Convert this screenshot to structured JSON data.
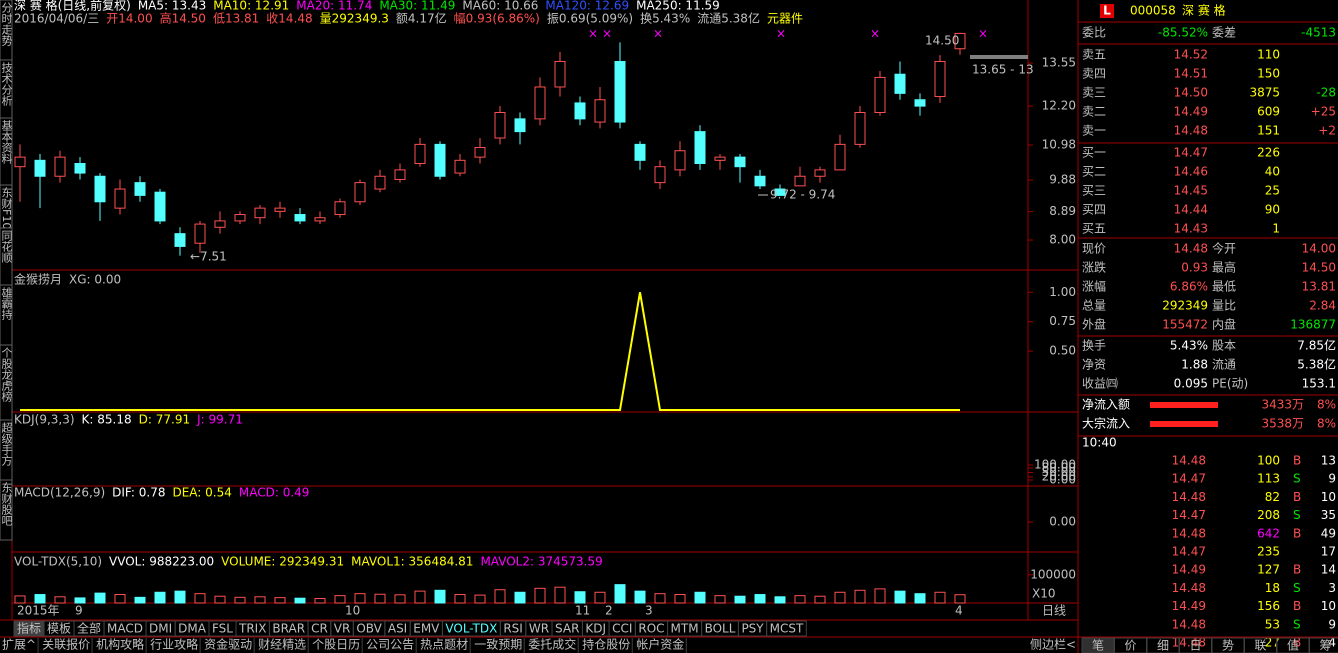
{
  "left_tabs": [
    "分时走势",
    "技术分析",
    "基本资料",
    "东财F10",
    "同花顺",
    "雄霸持",
    "个股龙虎榜",
    "超级手方",
    "东财股吧"
  ],
  "main_chart": {
    "title": "深 赛 格(日线,前复权)",
    "ma": [
      {
        "text": "MA5: 13.43",
        "color": "#ffffff"
      },
      {
        "text": "MA10: 12.91",
        "color": "#ffff00"
      },
      {
        "text": "MA20: 11.74",
        "color": "#ff00ff"
      },
      {
        "text": "MA30: 11.49",
        "color": "#00e600"
      },
      {
        "text": "MA60: 10.66",
        "color": "#c0c0c0"
      },
      {
        "text": "MA120: 12.69",
        "color": "#3050ff"
      },
      {
        "text": "MA250: 11.59",
        "color": "#ffffff"
      }
    ],
    "info": [
      {
        "text": "2016/04/06/三",
        "color": "#c0c0c0"
      },
      {
        "text": "开14.00",
        "color": "#ff5050"
      },
      {
        "text": "高14.50",
        "color": "#ff5050"
      },
      {
        "text": "低13.81",
        "color": "#ff5050"
      },
      {
        "text": "收14.48",
        "color": "#ff5050"
      },
      {
        "text": "量292349.3",
        "color": "#ffff00"
      },
      {
        "text": "额4.17亿",
        "color": "#c0c0c0"
      },
      {
        "text": "幅0.93(6.86%)",
        "color": "#ff5050"
      },
      {
        "text": "振0.69(5.09%)",
        "color": "#c0c0c0"
      },
      {
        "text": "换5.43%",
        "color": "#c0c0c0"
      },
      {
        "text": "流通5.38亿",
        "color": "#c0c0c0"
      },
      {
        "text": "元器件",
        "color": "#ffff00"
      }
    ],
    "ylim": [
      7.06,
      14.65
    ],
    "yticks": [
      13.55,
      {
        "value": 12.2,
        "label": "12.20"
      },
      10.98,
      9.88,
      8.89,
      {
        "value": 8,
        "label": "8.00"
      }
    ],
    "up_color": "#ff5050",
    "down_color": "#54ffff",
    "candles": [
      [
        10.3,
        10.6,
        11.0,
        9.2
      ],
      [
        10.5,
        10.0,
        10.7,
        9.0
      ],
      [
        10.0,
        10.6,
        10.8,
        9.8
      ],
      [
        10.4,
        10.1,
        10.6,
        9.9
      ],
      [
        10.0,
        9.2,
        10.1,
        8.6
      ],
      [
        9.0,
        9.6,
        9.9,
        8.8
      ],
      [
        9.8,
        9.4,
        10.0,
        9.2
      ],
      [
        9.5,
        8.6,
        9.6,
        8.5
      ],
      [
        8.2,
        7.8,
        8.4,
        7.51
      ],
      [
        7.9,
        8.5,
        8.6,
        7.6
      ],
      [
        8.4,
        8.6,
        8.9,
        8.2
      ],
      [
        8.6,
        8.8,
        8.9,
        8.5
      ],
      [
        8.7,
        9.0,
        9.1,
        8.5
      ],
      [
        8.9,
        9.0,
        9.2,
        8.7
      ],
      [
        8.8,
        8.6,
        9.0,
        8.5
      ],
      [
        8.6,
        8.7,
        8.9,
        8.5
      ],
      [
        8.8,
        9.2,
        9.3,
        8.7
      ],
      [
        9.2,
        9.8,
        9.9,
        9.1
      ],
      [
        9.6,
        10.0,
        10.2,
        9.5
      ],
      [
        9.9,
        10.2,
        10.4,
        9.8
      ],
      [
        10.4,
        11.0,
        11.2,
        10.3
      ],
      [
        11.0,
        10.0,
        11.1,
        9.9
      ],
      [
        10.1,
        10.5,
        10.7,
        10.0
      ],
      [
        10.6,
        10.9,
        11.2,
        10.4
      ],
      [
        11.2,
        12.0,
        12.2,
        11.0
      ],
      [
        11.8,
        11.4,
        12.0,
        11.0
      ],
      [
        11.8,
        12.8,
        13.1,
        11.6
      ],
      [
        12.8,
        13.6,
        13.9,
        12.5
      ],
      [
        12.3,
        11.8,
        12.5,
        11.6
      ],
      [
        11.7,
        12.4,
        12.8,
        11.5
      ],
      [
        13.6,
        11.7,
        14.2,
        11.5
      ],
      [
        11.0,
        10.5,
        11.1,
        10.2
      ],
      [
        9.8,
        10.3,
        10.5,
        9.6
      ],
      [
        10.2,
        10.8,
        11.1,
        10.0
      ],
      [
        11.4,
        10.4,
        11.6,
        10.2
      ],
      [
        10.5,
        10.6,
        10.7,
        10.2
      ],
      [
        10.6,
        10.3,
        10.7,
        9.8
      ],
      [
        10.0,
        9.7,
        10.2,
        9.6
      ],
      [
        9.6,
        9.4,
        9.74,
        9.4
      ],
      [
        9.7,
        10.0,
        10.3,
        9.7
      ],
      [
        10.0,
        10.2,
        10.3,
        9.8
      ],
      [
        10.2,
        11.0,
        11.3,
        10.2
      ],
      [
        11.0,
        12.0,
        12.2,
        10.9
      ],
      [
        12.0,
        13.1,
        13.3,
        11.9
      ],
      [
        13.2,
        12.6,
        13.6,
        12.4
      ],
      [
        12.4,
        12.2,
        12.6,
        11.9
      ],
      [
        12.5,
        13.6,
        13.8,
        12.3
      ],
      [
        14.0,
        14.48,
        14.5,
        13.81
      ]
    ],
    "annotations": [
      "←7.51",
      "9.72 - 9.74",
      "14.50",
      "13.65 - 13"
    ],
    "x_labels": [
      "2015年",
      "9",
      "10",
      "11",
      "2",
      "3",
      "4"
    ]
  },
  "signal_panel": {
    "title": "金猴捞月",
    "readout": "XG: 0.00",
    "color": "#ffff00",
    "ylim": [
      0,
      1.13
    ],
    "yticks": [
      {
        "value": 1,
        "label": "1.00"
      },
      0.75,
      {
        "value": 0.5,
        "label": "0.50"
      }
    ],
    "values": [
      0,
      0,
      0,
      0,
      0,
      0,
      0,
      0,
      0,
      0,
      0,
      0,
      0,
      0,
      0,
      0,
      0,
      0,
      0,
      0,
      0,
      0,
      0,
      0,
      0,
      0,
      0,
      0,
      0,
      0,
      0,
      1,
      0,
      0,
      0,
      0,
      0,
      0,
      0,
      0,
      0,
      0,
      0,
      0,
      0,
      0,
      0,
      0
    ]
  },
  "kdj_panel": {
    "title": "KDJ(9,3,3)",
    "readouts": [
      {
        "text": "K: 85.18",
        "color": "#ffffff"
      },
      {
        "text": "D: 77.91",
        "color": "#ffff00"
      },
      {
        "text": "J: 99.71",
        "color": "#ff00ff"
      }
    ],
    "ylim": [
      0,
      100
    ],
    "yticks": [
      {
        "value": 100,
        "label": "100.00"
      },
      {
        "value": 80,
        "label": "80.00"
      },
      {
        "value": 50,
        "label": "50.00"
      },
      {
        "value": 20,
        "label": "20.00"
      },
      {
        "value": 0,
        "label": "0.00"
      }
    ]
  },
  "macd_panel": {
    "title": "MACD(12,26,9)",
    "readouts": [
      {
        "text": "DIF: 0.78",
        "color": "#ffffff"
      },
      {
        "text": "DEA: 0.54",
        "color": "#ffff00"
      },
      {
        "text": "MACD: 0.49",
        "color": "#ff00ff"
      }
    ],
    "ylim": [
      -0.9,
      0.9
    ],
    "yticks": [
      {
        "value": 0,
        "label": "0.00"
      }
    ]
  },
  "volume_panel": {
    "title": "VOL-TDX(5,10)",
    "readouts": [
      {
        "text": "VVOL: 988223.00",
        "color": "#ffffff"
      },
      {
        "text": "VOLUME: 292349.31",
        "color": "#ffff00"
      },
      {
        "text": "MAVOL1: 356484.81",
        "color": "#ffff00"
      },
      {
        "text": "MAVOL2: 374573.59",
        "color": "#ff00ff"
      }
    ],
    "ylim": [
      0,
      1700000
    ],
    "yticks": [
      {
        "value": 1000000,
        "label": "100000"
      }
    ],
    "scale_note": "X10",
    "values": [
      250000,
      300000,
      220000,
      180000,
      350000,
      300000,
      200000,
      380000,
      420000,
      330000,
      240000,
      200000,
      220000,
      190000,
      170000,
      160000,
      260000,
      330000,
      310000,
      290000,
      420000,
      450000,
      300000,
      280000,
      470000,
      380000,
      520000,
      560000,
      400000,
      380000,
      650000,
      420000,
      330000,
      300000,
      380000,
      260000,
      240000,
      300000,
      220000,
      260000,
      240000,
      380000,
      450000,
      500000,
      420000,
      330000,
      380000,
      292349
    ]
  },
  "period": "日线",
  "indicator_tabs": [
    "指标",
    "模板",
    "全部",
    "MACD",
    "DMI",
    "DMA",
    "FSL",
    "TRIX",
    "BRAR",
    "CR",
    "VR",
    "OBV",
    "ASI",
    "EMV",
    "VOL-TDX",
    "RSI",
    "WR",
    "SAR",
    "KDJ",
    "CCI",
    "ROC",
    "MTM",
    "BOLL",
    "PSY",
    "MCST"
  ],
  "function_tabs": [
    "扩展^",
    "关联报价",
    "机构攻略",
    "行业攻略",
    "资金驱动",
    "财经精选",
    "个股日历",
    "公司公告",
    "热点题材",
    "一致预期",
    "委托成交",
    "持仓股份",
    "帐户资金"
  ],
  "sidebar": "侧边栏<",
  "quote": {
    "badge": "L",
    "code": "000058",
    "name": "深 赛 格",
    "ratio": {
      "l1": "委比",
      "v1": "-85.52%",
      "l2": "委差",
      "v2": "-4513",
      "color": "#00e600"
    },
    "asks": [
      {
        "label": "卖五",
        "price": "14.52",
        "volume": "110"
      },
      {
        "label": "卖四",
        "price": "14.51",
        "volume": "150"
      },
      {
        "label": "卖三",
        "price": "14.50",
        "volume": "3875",
        "change": "-28",
        "change_color": "#00e600"
      },
      {
        "label": "卖二",
        "price": "14.49",
        "volume": "609",
        "change": "+25",
        "change_color": "#ff5050"
      },
      {
        "label": "卖一",
        "price": "14.48",
        "volume": "151",
        "change": "+2",
        "change_color": "#ff5050"
      }
    ],
    "bids": [
      {
        "label": "买一",
        "price": "14.47",
        "volume": "226"
      },
      {
        "label": "买二",
        "price": "14.46",
        "volume": "40"
      },
      {
        "label": "买三",
        "price": "14.45",
        "volume": "25"
      },
      {
        "label": "买四",
        "price": "14.44",
        "volume": "90"
      },
      {
        "label": "买五",
        "price": "14.43",
        "volume": "1"
      }
    ],
    "stats": [
      {
        "l1": "现价",
        "v1": "14.48",
        "c1": "#ff5050",
        "l2": "今开",
        "v2": "14.00",
        "c2": "#ff5050"
      },
      {
        "l1": "涨跌",
        "v1": "0.93",
        "c1": "#ff5050",
        "l2": "最高",
        "v2": "14.50",
        "c2": "#ff5050"
      },
      {
        "l1": "涨幅",
        "v1": "6.86%",
        "c1": "#ff5050",
        "l2": "最低",
        "v2": "13.81",
        "c2": "#ff5050"
      },
      {
        "l1": "总量",
        "v1": "292349",
        "c1": "#ffff00",
        "l2": "量比",
        "v2": "2.84",
        "c2": "#ff5050"
      },
      {
        "l1": "外盘",
        "v1": "155472",
        "c1": "#ff5050",
        "l2": "内盘",
        "v2": "136877",
        "c2": "#00e600"
      },
      {
        "l1": "换手",
        "v1": "5.43%",
        "c1": "#ffffff",
        "l2": "股本",
        "v2": "7.85亿",
        "c2": "#ffffff"
      },
      {
        "l1": "净资",
        "v1": "1.88",
        "c1": "#ffffff",
        "l2": "流通",
        "v2": "5.38亿",
        "c2": "#ffffff"
      },
      {
        "l1": "收益㈣",
        "v1": "0.095",
        "c1": "#ffffff",
        "l2": "PE(动)",
        "v2": "153.1",
        "c2": "#ffffff"
      }
    ],
    "flows": [
      {
        "label": "净流入额",
        "amount": "3433万",
        "pct": "8%"
      },
      {
        "label": "大宗流入",
        "amount": "3538万",
        "pct": "8%"
      }
    ],
    "time": "10:40",
    "trades": [
      {
        "price": "14.48",
        "volume": "100",
        "side": "B",
        "count": "13",
        "side_color": "#ff5050",
        "volume_color": "#ffff00"
      },
      {
        "price": "14.47",
        "volume": "113",
        "side": "S",
        "count": "9",
        "side_color": "#00e600",
        "volume_color": "#ffff00"
      },
      {
        "price": "14.48",
        "volume": "82",
        "side": "B",
        "count": "10",
        "side_color": "#ff5050",
        "volume_color": "#ffff00"
      },
      {
        "price": "14.47",
        "volume": "208",
        "side": "S",
        "count": "35",
        "side_color": "#00e600",
        "volume_color": "#ffff00"
      },
      {
        "price": "14.48",
        "volume": "642",
        "side": "B",
        "count": "49",
        "side_color": "#ff5050",
        "volume_color": "#ff00ff"
      },
      {
        "price": "14.47",
        "volume": "235",
        "count": "17",
        "volume_color": "#ffff00"
      },
      {
        "price": "14.49",
        "volume": "127",
        "side": "B",
        "count": "14",
        "side_color": "#ff5050",
        "volume_color": "#ffff00"
      },
      {
        "price": "14.48",
        "volume": "18",
        "side": "S",
        "count": "3",
        "side_color": "#00e600",
        "volume_color": "#ffff00"
      },
      {
        "price": "14.49",
        "volume": "156",
        "side": "B",
        "count": "10",
        "side_color": "#ff5050",
        "volume_color": "#ffff00"
      },
      {
        "price": "14.48",
        "volume": "53",
        "side": "S",
        "count": "9",
        "side_color": "#00e600",
        "volume_color": "#ffff00"
      },
      {
        "price": "14.48",
        "volume": "27",
        "side": "B",
        "count": "4",
        "side_color": "#ff5050",
        "volume_color": "#ffff00"
      }
    ],
    "tabs": [
      "笔",
      "价",
      "细",
      "日",
      "势",
      "联",
      "值",
      "筹"
    ]
  }
}
